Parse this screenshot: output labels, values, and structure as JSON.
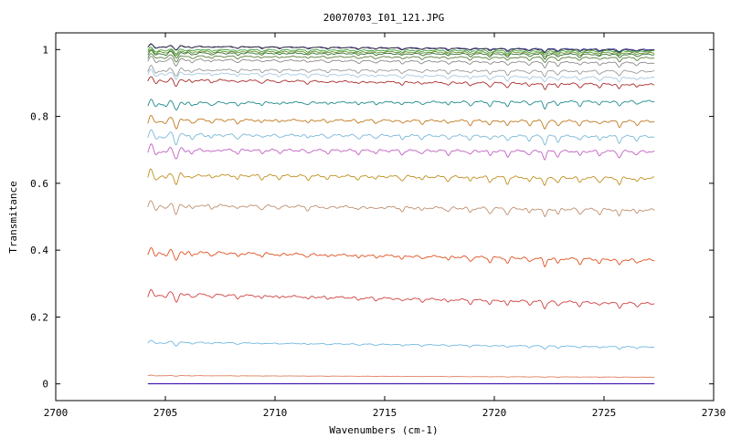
{
  "chart_data": {
    "type": "line",
    "title": "20070703_I01_121.JPG",
    "xlabel": "Wavenumbers (cm-1)",
    "ylabel": "Transmitance",
    "xlim": [
      2700,
      2730
    ],
    "ylim": [
      -0.05,
      1.05
    ],
    "x_ticks": [
      "2700",
      "2705",
      "2710",
      "2715",
      "2720",
      "2725",
      "2730"
    ],
    "y_ticks": [
      "0",
      "0.2",
      "0.4",
      "0.6",
      "0.8",
      "1"
    ],
    "x_range": [
      2704.2,
      2727.3
    ],
    "grid": false,
    "legend": "none",
    "series": [
      {
        "color": "#2f2f9f",
        "start": 1.01,
        "end": 1.0,
        "depth": 0.01
      },
      {
        "color": "#3a3a3a",
        "start": 1.01,
        "end": 0.998,
        "depth": 0.012
      },
      {
        "color": "#3aa33a",
        "start": 1.0,
        "end": 0.995,
        "depth": 0.014
      },
      {
        "color": "#6a8f2a",
        "start": 0.995,
        "end": 0.99,
        "depth": 0.015
      },
      {
        "color": "#2e6f2e",
        "start": 0.99,
        "end": 0.985,
        "depth": 0.016
      },
      {
        "color": "#5c7f3c",
        "start": 0.98,
        "end": 0.975,
        "depth": 0.016
      },
      {
        "color": "#8a8a8a",
        "start": 0.97,
        "end": 0.96,
        "depth": 0.018
      },
      {
        "color": "#9a9a9a",
        "start": 0.94,
        "end": 0.935,
        "depth": 0.02
      },
      {
        "color": "#a8c8e0",
        "start": 0.93,
        "end": 0.915,
        "depth": 0.02
      },
      {
        "color": "#aa2a2a",
        "start": 0.91,
        "end": 0.895,
        "depth": 0.022
      },
      {
        "color": "#1f8a8a",
        "start": 0.84,
        "end": 0.845,
        "depth": 0.024
      },
      {
        "color": "#c07a20",
        "start": 0.79,
        "end": 0.785,
        "depth": 0.026
      },
      {
        "color": "#7ab8d8",
        "start": 0.745,
        "end": 0.74,
        "depth": 0.028
      },
      {
        "color": "#c060c0",
        "start": 0.7,
        "end": 0.695,
        "depth": 0.028
      },
      {
        "color": "#c09020",
        "start": 0.625,
        "end": 0.615,
        "depth": 0.03
      },
      {
        "color": "#c09070",
        "start": 0.535,
        "end": 0.52,
        "depth": 0.03
      },
      {
        "color": "#e05020",
        "start": 0.395,
        "end": 0.37,
        "depth": 0.028
      },
      {
        "color": "#d04040",
        "start": 0.27,
        "end": 0.24,
        "depth": 0.024
      },
      {
        "color": "#70b8e0",
        "start": 0.125,
        "end": 0.11,
        "depth": 0.01
      },
      {
        "color": "#e08060",
        "start": 0.025,
        "end": 0.02,
        "depth": 0.002
      },
      {
        "color": "#a020a0",
        "start": 0.001,
        "end": 0.001,
        "depth": 0.0
      },
      {
        "color": "#2020c0",
        "start": 0.0,
        "end": 0.0,
        "depth": 0.0
      }
    ]
  }
}
